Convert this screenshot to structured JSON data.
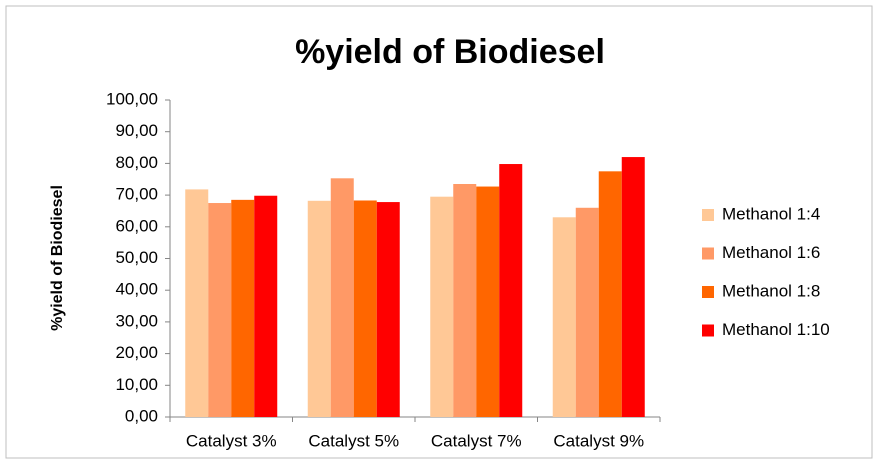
{
  "chart_data": {
    "type": "bar",
    "title": "%yield of Biodiesel",
    "y_label": "%yield of Biodiesel",
    "categories": [
      "Catalyst 3%",
      "Catalyst 5%",
      "Catalyst 7%",
      "Catalyst 9%"
    ],
    "series": [
      {
        "name": "Methanol 1:4",
        "color": "#ffc896",
        "values": [
          71.8,
          68.2,
          69.5,
          63.0
        ]
      },
      {
        "name": "Methanol 1:6",
        "color": "#ff9966",
        "values": [
          67.5,
          75.3,
          73.5,
          66.0
        ]
      },
      {
        "name": "Methanol 1:8",
        "color": "#ff6600",
        "values": [
          68.5,
          68.3,
          72.7,
          77.5
        ]
      },
      {
        "name": "Methanol 1:10",
        "color": "#ff0000",
        "values": [
          69.8,
          67.8,
          79.8,
          82.0
        ]
      }
    ],
    "ylim": [
      0,
      100
    ],
    "yticks": [
      {
        "value": 0,
        "label": "0,00"
      },
      {
        "value": 10,
        "label": "10,00"
      },
      {
        "value": 20,
        "label": "20,00"
      },
      {
        "value": 30,
        "label": "30,00"
      },
      {
        "value": 40,
        "label": "40,00"
      },
      {
        "value": 50,
        "label": "50,00"
      },
      {
        "value": 60,
        "label": "60,00"
      },
      {
        "value": 70,
        "label": "70,00"
      },
      {
        "value": 80,
        "label": "80,00"
      },
      {
        "value": 90,
        "label": "90,00"
      },
      {
        "value": 100,
        "label": "100,00"
      }
    ],
    "legend": "right"
  }
}
